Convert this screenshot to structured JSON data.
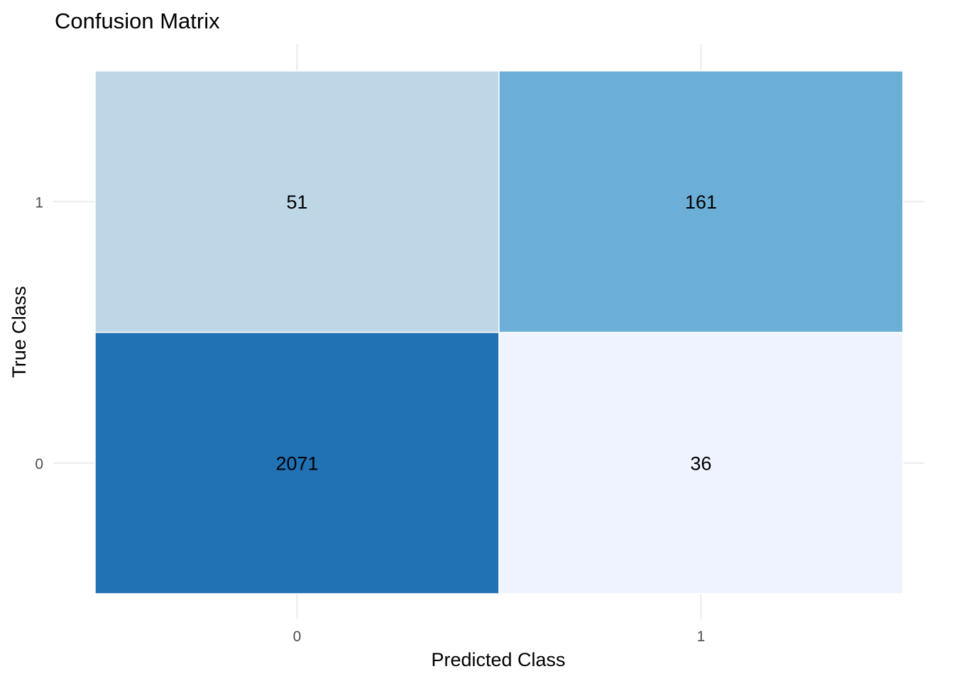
{
  "chart_data": {
    "type": "heatmap",
    "title": "Confusion Matrix",
    "xlabel": "Predicted Class",
    "ylabel": "True Class",
    "x_categories": [
      "0",
      "1"
    ],
    "y_categories": [
      "0",
      "1"
    ],
    "cells": [
      {
        "predicted": "0",
        "true": "0",
        "value": 2071,
        "label": "2071",
        "color": "#2171b5"
      },
      {
        "predicted": "1",
        "true": "0",
        "value": 36,
        "label": "36",
        "color": "#eff3ff"
      },
      {
        "predicted": "0",
        "true": "1",
        "value": 51,
        "label": "51",
        "color": "#bdd7e7"
      },
      {
        "predicted": "1",
        "true": "1",
        "value": 161,
        "label": "161",
        "color": "#6baed6"
      }
    ],
    "grid": true,
    "legend": "none"
  }
}
